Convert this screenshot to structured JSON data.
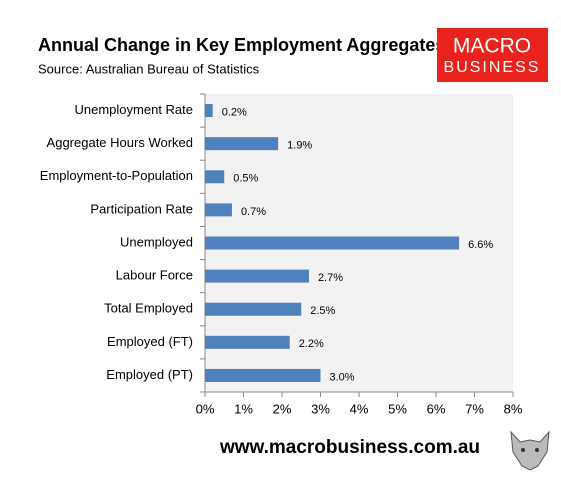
{
  "chart_data": {
    "type": "barh",
    "title": "Annual Change in Key Employment Aggregates",
    "subtitle": "Source: Australian Bureau of Statistics",
    "logo": [
      "MACRO",
      "BUSINESS"
    ],
    "footer": "www.macrobusiness.com.au",
    "categories": [
      "Unemployment Rate",
      "Aggregate Hours Worked",
      "Employment-to-Population",
      "Participation Rate",
      "Unemployed",
      "Labour Force",
      "Total Employed",
      "Employed (FT)",
      "Employed (PT)"
    ],
    "values": [
      0.2,
      1.9,
      0.5,
      0.7,
      6.6,
      2.7,
      2.5,
      2.2,
      3.0
    ],
    "value_labels": [
      "0.2%",
      "1.9%",
      "0.5%",
      "0.7%",
      "6.6%",
      "2.7%",
      "2.5%",
      "2.2%",
      "3.0%"
    ],
    "color": "#4f81bd",
    "xlim": [
      0,
      8
    ],
    "xticks": [
      {
        "value": 0,
        "label": "0%"
      },
      {
        "value": 1,
        "label": "1%"
      },
      {
        "value": 2,
        "label": "2%"
      },
      {
        "value": 3,
        "label": "3%"
      },
      {
        "value": 4,
        "label": "4%"
      },
      {
        "value": 5,
        "label": "5%"
      },
      {
        "value": 6,
        "label": "6%"
      },
      {
        "value": 7,
        "label": "7%"
      },
      {
        "value": 8,
        "label": "8%"
      }
    ]
  }
}
